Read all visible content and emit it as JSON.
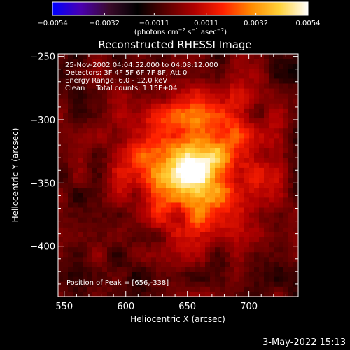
{
  "chart_data": {
    "type": "heatmap",
    "title": "Reconstructed RHESSI Image",
    "xlabel": "Heliocentric X (arcsec)",
    "ylabel": "Heliocentric Y (arcsec)",
    "xlim": [
      545,
      740
    ],
    "ylim": [
      -440,
      -248
    ],
    "x_ticks": [
      550,
      600,
      650,
      700
    ],
    "y_ticks": [
      -250,
      -300,
      -350,
      -400
    ],
    "x_tick_labels": [
      "550",
      "600",
      "650",
      "700"
    ],
    "y_tick_labels": [
      "−250",
      "−300",
      "−350",
      "−400"
    ],
    "colorbar": {
      "range": [
        -0.0054,
        0.0054
      ],
      "ticks": [
        -0.0054,
        -0.0032,
        -0.0011,
        0.0011,
        0.0032,
        0.0054
      ],
      "tick_labels": [
        "−0.0054",
        "−0.0032",
        "−0.0011",
        "0.0011",
        "0.0032",
        "0.0054"
      ],
      "units_prefix": "(photons cm",
      "units_exp1": "−2",
      "units_mid1": " s",
      "units_exp2": "−1",
      "units_mid2": " asec",
      "units_exp3": "−2",
      "units_suffix": ")",
      "colors": [
        "#0000ff",
        "#4a00b0",
        "#3a0a2a",
        "#000000",
        "#5a0000",
        "#b00000",
        "#ff2000",
        "#ff8a00",
        "#ffd23a",
        "#ffffff"
      ]
    },
    "annotations": [
      "25-Nov-2002 04:04:52.000 to 04:08:12.000",
      "Detectors: 3F 4F 5F 6F 7F 8F, Att 0",
      "Energy Range: 6.0 - 12.0 keV",
      "Clean     Total counts: 1.15E+04"
    ],
    "peak_label": "Position of Peak = [656,-338]",
    "peak": [
      656,
      -338
    ],
    "source_sigma_arcsec": 40
  },
  "footer": {
    "date": "3-May-2022 15:13"
  }
}
